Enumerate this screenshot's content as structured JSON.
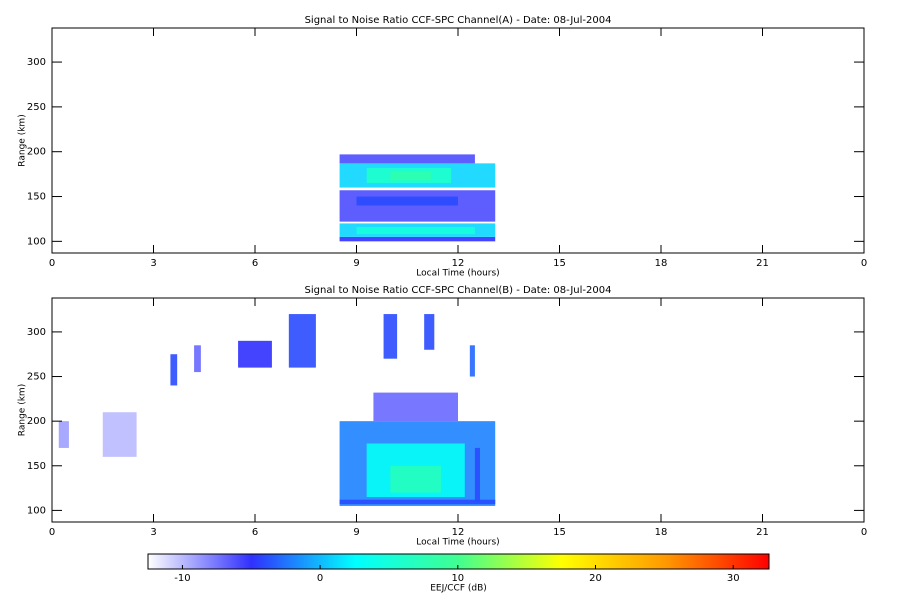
{
  "chart_data": [
    {
      "type": "heatmap",
      "title": "Signal to Noise Ratio CCF-SPC Channel(A) - Date: 08-Jul-2004",
      "xlabel": "Local Time (hours)",
      "ylabel": "Range (km)",
      "xlim": [
        0,
        24
      ],
      "xticks": [
        0,
        3,
        6,
        9,
        12,
        15,
        18,
        21,
        {
          "value": 24,
          "label": "0"
        }
      ],
      "ylim": [
        87,
        338
      ],
      "yticks": [
        100,
        150,
        200,
        250,
        300
      ],
      "cells": [
        {
          "x0": 8.5,
          "x1": 13.1,
          "y0": 100,
          "y1": 105,
          "value": -5
        },
        {
          "x0": 8.5,
          "x1": 13.1,
          "y0": 105,
          "y1": 120,
          "value": 1
        },
        {
          "x0": 9,
          "x1": 12.5,
          "y0": 108,
          "y1": 116,
          "value": 5
        },
        {
          "x0": 8.5,
          "x1": 13.1,
          "y0": 122,
          "y1": 157,
          "value": -6
        },
        {
          "x0": 9,
          "x1": 12,
          "y0": 140,
          "y1": 150,
          "value": -4
        },
        {
          "x0": 8.5,
          "x1": 13.1,
          "y0": 160,
          "y1": 187,
          "value": 1
        },
        {
          "x0": 9.3,
          "x1": 11.8,
          "y0": 165,
          "y1": 182,
          "value": 6
        },
        {
          "x0": 10,
          "x1": 11.2,
          "y0": 168,
          "y1": 178,
          "value": 8
        },
        {
          "x0": 8.5,
          "x1": 12.5,
          "y0": 187,
          "y1": 197,
          "value": -6
        }
      ]
    },
    {
      "type": "heatmap",
      "title": "Signal to Noise Ratio CCF-SPC Channel(B) - Date: 08-Jul-2004",
      "xlabel": "Local Time (hours)",
      "ylabel": "Range (km)",
      "xlim": [
        0,
        24
      ],
      "xticks": [
        0,
        3,
        6,
        9,
        12,
        15,
        18,
        21,
        {
          "value": 24,
          "label": "0"
        }
      ],
      "ylim": [
        87,
        338
      ],
      "yticks": [
        100,
        150,
        200,
        250,
        300
      ],
      "cells": [
        {
          "x0": 0.2,
          "x1": 0.5,
          "y0": 170,
          "y1": 200,
          "value": -9
        },
        {
          "x0": 1.5,
          "x1": 2.5,
          "y0": 160,
          "y1": 210,
          "value": -10
        },
        {
          "x0": 3.5,
          "x1": 3.7,
          "y0": 240,
          "y1": 275,
          "value": -4
        },
        {
          "x0": 4.2,
          "x1": 4.4,
          "y0": 255,
          "y1": 285,
          "value": -7
        },
        {
          "x0": 5.5,
          "x1": 6.5,
          "y0": 260,
          "y1": 290,
          "value": -5
        },
        {
          "x0": 7,
          "x1": 7.8,
          "y0": 260,
          "y1": 320,
          "value": -4
        },
        {
          "x0": 9.8,
          "x1": 10.2,
          "y0": 270,
          "y1": 320,
          "value": -4
        },
        {
          "x0": 11,
          "x1": 11.3,
          "y0": 280,
          "y1": 320,
          "value": -4
        },
        {
          "x0": 12.35,
          "x1": 12.5,
          "y0": 250,
          "y1": 285,
          "value": -3
        },
        {
          "x0": 9.5,
          "x1": 12,
          "y0": 200,
          "y1": 232,
          "value": -7
        },
        {
          "x0": 8.5,
          "x1": 13.1,
          "y0": 105,
          "y1": 200,
          "value": -2
        },
        {
          "x0": 9.3,
          "x1": 12.2,
          "y0": 115,
          "y1": 175,
          "value": 3
        },
        {
          "x0": 10,
          "x1": 11.5,
          "y0": 120,
          "y1": 150,
          "value": 7
        },
        {
          "x0": 8.5,
          "x1": 13.1,
          "y0": 107,
          "y1": 112,
          "value": -4
        },
        {
          "x0": 12.5,
          "x1": 12.65,
          "y0": 110,
          "y1": 170,
          "value": -4
        }
      ]
    },
    {
      "type": "colorbar",
      "xlabel": "EEJ/CCF (dB)",
      "xlim": [
        -12.5,
        32.6
      ],
      "xticks": [
        -10,
        0,
        10,
        20,
        30
      ],
      "colors": [
        "#ffffff",
        "#3030ff",
        "#00ffff",
        "#40ff90",
        "#ffff00",
        "#ff9900",
        "#ff0000"
      ]
    }
  ]
}
